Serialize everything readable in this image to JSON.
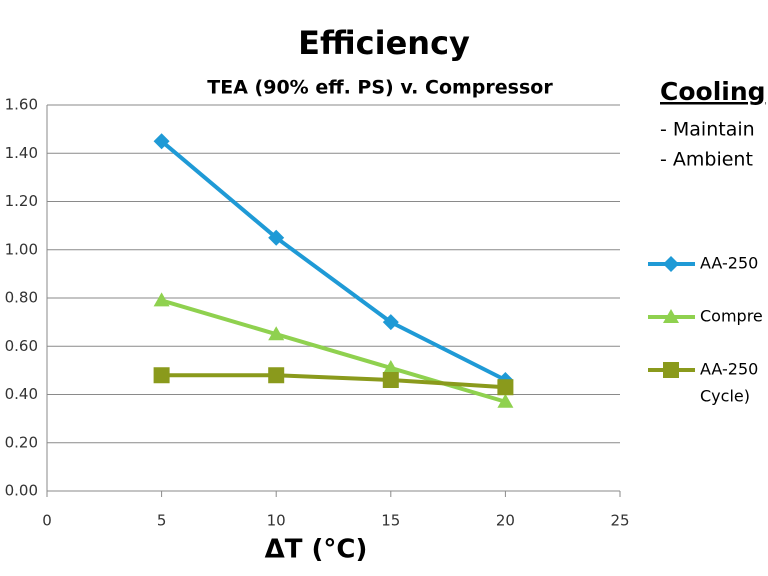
{
  "chart_data": {
    "type": "line",
    "title": "Efficiency",
    "subtitle": "TEA (90% eff. PS) v. Compressor",
    "x_label": "ΔT (°C)",
    "x": [
      5,
      10,
      15,
      20
    ],
    "xlim": [
      0,
      25
    ],
    "xticks": [
      0,
      5,
      10,
      15,
      20,
      25
    ],
    "ylim": [
      0,
      1.6
    ],
    "yticks": [
      {
        "value": 0,
        "label": "0.00"
      },
      {
        "value": 0.2,
        "label": "0.20"
      },
      {
        "value": 0.4,
        "label": "0.40"
      },
      {
        "value": 0.6,
        "label": "0.60"
      },
      {
        "value": 0.8,
        "label": "0.80"
      },
      {
        "value": 1.0,
        "label": "1.00"
      },
      {
        "value": 1.2,
        "label": "1.20"
      },
      {
        "value": 1.4,
        "label": "1.40"
      },
      {
        "value": 1.6,
        "label": "1.60"
      }
    ],
    "grid": true,
    "series": [
      {
        "name": "AA-250",
        "color": "#1f9ad6",
        "marker": "diamond",
        "values": [
          1.45,
          1.05,
          0.7,
          0.46
        ]
      },
      {
        "name": "Compre",
        "color": "#8fd14f",
        "marker": "triangle",
        "values": [
          0.79,
          0.65,
          0.51,
          0.37
        ]
      },
      {
        "name": "AA-250",
        "name_continued": "Cycle)",
        "color": "#8a9a1c",
        "marker": "square",
        "values": [
          0.48,
          0.48,
          0.46,
          0.43
        ]
      }
    ],
    "side_heading": "Cooling",
    "side_notes": [
      "- Maintain",
      "- Ambient"
    ]
  }
}
